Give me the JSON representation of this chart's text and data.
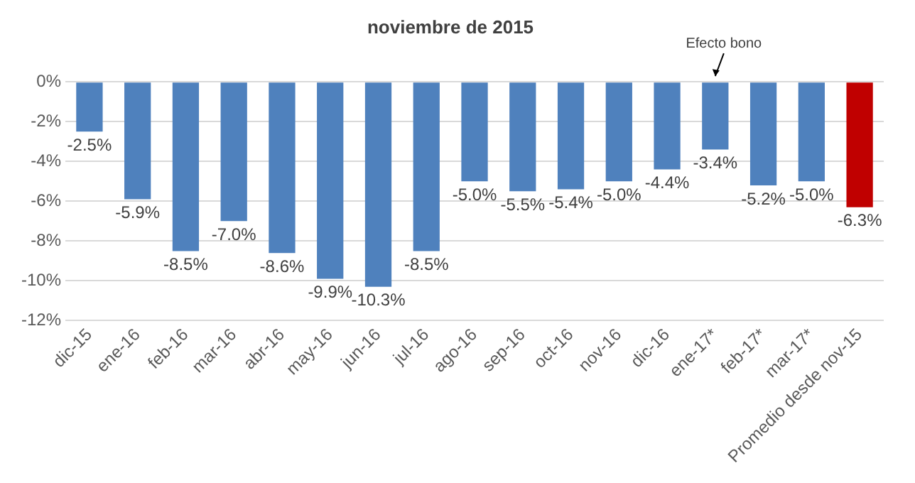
{
  "chart_data": {
    "type": "bar",
    "title": "noviembre de 2015",
    "categories": [
      "dic-15",
      "ene-16",
      "feb-16",
      "mar-16",
      "abr-16",
      "may-16",
      "jun-16",
      "jul-16",
      "ago-16",
      "sep-16",
      "oct-16",
      "nov-16",
      "dic-16",
      "ene-17*",
      "feb-17*",
      "mar-17*",
      "Promedio desde nov-15"
    ],
    "values": [
      -2.5,
      -5.9,
      -8.5,
      -7.0,
      -8.6,
      -9.9,
      -10.3,
      -8.5,
      -5.0,
      -5.5,
      -5.4,
      -5.0,
      -4.4,
      -3.4,
      -5.2,
      -5.0,
      -6.3
    ],
    "value_labels": [
      "-2.5%",
      "-5.9%",
      "-8.5%",
      "-7.0%",
      "-8.6%",
      "-9.9%",
      "-10.3%",
      "-8.5%",
      "-5.0%",
      "-5.5%",
      "-5.4%",
      "-5.0%",
      "-4.4%",
      "-3.4%",
      "-5.2%",
      "-5.0%",
      "-6.3%"
    ],
    "colors": [
      "#4f81bd",
      "#4f81bd",
      "#4f81bd",
      "#4f81bd",
      "#4f81bd",
      "#4f81bd",
      "#4f81bd",
      "#4f81bd",
      "#4f81bd",
      "#4f81bd",
      "#4f81bd",
      "#4f81bd",
      "#4f81bd",
      "#4f81bd",
      "#4f81bd",
      "#4f81bd",
      "#c00000"
    ],
    "ylim": [
      -12,
      0
    ],
    "yticks": [
      {
        "value": -12,
        "label": "-12%"
      },
      {
        "value": -10,
        "label": "-10%"
      },
      {
        "value": -8,
        "label": "-8%"
      },
      {
        "value": -6,
        "label": "-6%"
      },
      {
        "value": -4,
        "label": "-4%"
      },
      {
        "value": -2,
        "label": "-2%"
      },
      {
        "value": 0,
        "label": "0%"
      }
    ],
    "annotations": [
      {
        "text": "Efecto bono",
        "x": "ene-17*",
        "y": 0
      }
    ],
    "grid": "y",
    "legend": false
  }
}
